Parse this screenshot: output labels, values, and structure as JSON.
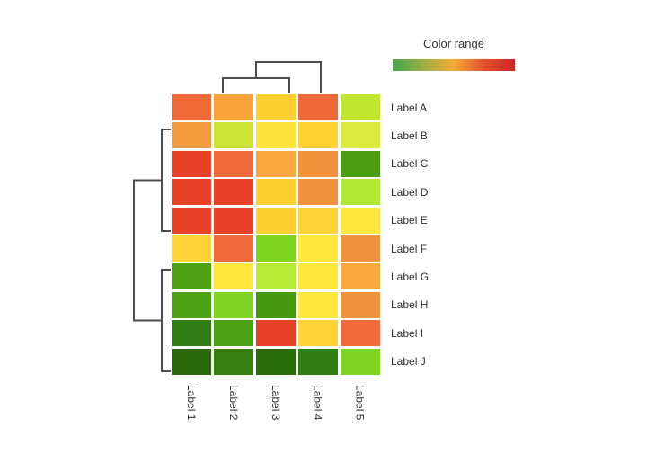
{
  "legend": {
    "title": "Color range",
    "gradient_colors": [
      "#47A44E",
      "#9BAF47",
      "#F2AC38",
      "#E2512F",
      "#CE2428"
    ]
  },
  "chart_data": {
    "type": "heatmap",
    "title": "",
    "legend_title": "Color range",
    "rows": [
      "Label A",
      "Label B",
      "Label C",
      "Label D",
      "Label E",
      "Label F",
      "Label G",
      "Label H",
      "Label I",
      "Label J"
    ],
    "columns": [
      "Label 1",
      "Label 2",
      "Label 3",
      "Label 4",
      "Label 5"
    ],
    "colorscale": {
      "low": "green",
      "mid": "yellow-orange",
      "high": "red"
    },
    "cell_colors": [
      [
        "#F06A38",
        "#F9A33B",
        "#FFD02F",
        "#EF6837",
        "#C1E62E"
      ],
      [
        "#F29A3E",
        "#CDE636",
        "#FFE33B",
        "#FFD22F",
        "#D9EC3C"
      ],
      [
        "#EA4129",
        "#F06A3C",
        "#F9A83C",
        "#F0933C",
        "#4C9E11"
      ],
      [
        "#EA4129",
        "#EA4129",
        "#FFD02F",
        "#F0933C",
        "#AFE732"
      ],
      [
        "#EA4129",
        "#EA4129",
        "#FFD02F",
        "#FFD335",
        "#FFE83B"
      ],
      [
        "#FFD335",
        "#F06A3C",
        "#7FD41F",
        "#FFE83B",
        "#F0933C"
      ],
      [
        "#4DA214",
        "#FFE83B",
        "#B6EC35",
        "#FFE83B",
        "#F9A83C"
      ],
      [
        "#4DA214",
        "#7FD421",
        "#45990F",
        "#FFE83B",
        "#F0933C"
      ],
      [
        "#2F7D13",
        "#4DA214",
        "#EA4129",
        "#FFD335",
        "#F06A3C"
      ],
      [
        "#27690A",
        "#35800F",
        "#286D08",
        "#307D11",
        "#7FD421"
      ]
    ],
    "values_normalized_estimate": [
      [
        0.8,
        0.62,
        0.5,
        0.8,
        0.28
      ],
      [
        0.6,
        0.26,
        0.42,
        0.5,
        0.26
      ],
      [
        0.92,
        0.8,
        0.62,
        0.65,
        0.14
      ],
      [
        0.92,
        0.92,
        0.5,
        0.65,
        0.24
      ],
      [
        0.92,
        0.92,
        0.5,
        0.48,
        0.4
      ],
      [
        0.48,
        0.8,
        0.2,
        0.4,
        0.65
      ],
      [
        0.14,
        0.4,
        0.24,
        0.4,
        0.62
      ],
      [
        0.14,
        0.2,
        0.13,
        0.4,
        0.65
      ],
      [
        0.07,
        0.14,
        0.92,
        0.48,
        0.8
      ],
      [
        0.02,
        0.05,
        0.02,
        0.04,
        0.2
      ]
    ],
    "dendrograms": {
      "columns": "Label 2 and Label 3 join first; that cluster then joins Label 4",
      "rows": "Labels B-E form one cluster, Labels G-J form another; the two clusters join at a higher level",
      "line_color": "#4d4d4d"
    },
    "layout_hints": {
      "legend_position": "top-right",
      "row_labels_side": "right",
      "col_labels_side": "bottom",
      "grid": "off"
    }
  }
}
